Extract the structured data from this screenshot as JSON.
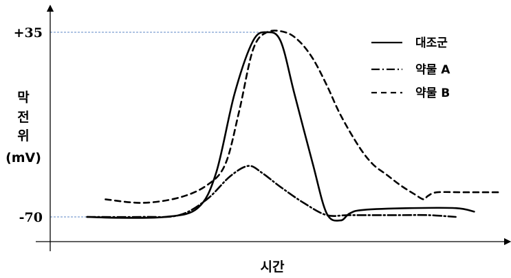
{
  "chart_data": {
    "type": "line",
    "xlabel": "시간",
    "ylabel_lines": [
      "막",
      "전",
      "위",
      "(mV)"
    ],
    "y_ticks": [
      {
        "value": 35,
        "label": "+35"
      },
      {
        "value": -70,
        "label": "-70"
      }
    ],
    "reference_lines": [
      35,
      -70
    ],
    "legend_position": "top-right",
    "x_range": [
      0,
      100
    ],
    "ylim": [
      -81,
      41
    ],
    "series": [
      {
        "name": "대조군",
        "style": "solid",
        "points": [
          [
            8,
            -70
          ],
          [
            15,
            -70.5
          ],
          [
            25,
            -70
          ],
          [
            32,
            -65
          ],
          [
            36,
            -45
          ],
          [
            40,
            0
          ],
          [
            44,
            30
          ],
          [
            47,
            35
          ],
          [
            50,
            30
          ],
          [
            53,
            0
          ],
          [
            57,
            -40
          ],
          [
            60,
            -68
          ],
          [
            63,
            -72
          ],
          [
            65,
            -68
          ],
          [
            68,
            -66
          ],
          [
            78,
            -65
          ],
          [
            88,
            -65
          ],
          [
            92,
            -67
          ]
        ]
      },
      {
        "name": "약물 A",
        "style": "dashdot",
        "points": [
          [
            8,
            -70
          ],
          [
            20,
            -70
          ],
          [
            28,
            -69
          ],
          [
            34,
            -60
          ],
          [
            39,
            -47
          ],
          [
            43,
            -41
          ],
          [
            46,
            -45
          ],
          [
            50,
            -53
          ],
          [
            55,
            -62
          ],
          [
            60,
            -69
          ],
          [
            65,
            -69
          ],
          [
            75,
            -69
          ],
          [
            82,
            -69
          ],
          [
            88,
            -70
          ]
        ]
      },
      {
        "name": "약물 B",
        "style": "dashed",
        "points": [
          [
            12,
            -60
          ],
          [
            20,
            -62
          ],
          [
            28,
            -59
          ],
          [
            34,
            -52
          ],
          [
            38,
            -40
          ],
          [
            41,
            -10
          ],
          [
            44,
            25
          ],
          [
            47,
            35
          ],
          [
            51,
            35
          ],
          [
            54,
            30
          ],
          [
            57,
            20
          ],
          [
            60,
            5
          ],
          [
            63,
            -12
          ],
          [
            67,
            -30
          ],
          [
            70,
            -40
          ],
          [
            73,
            -46
          ],
          [
            76,
            -52
          ],
          [
            79,
            -57
          ],
          [
            81,
            -60
          ],
          [
            82,
            -58
          ],
          [
            84,
            -56
          ],
          [
            90,
            -56
          ],
          [
            98,
            -56
          ]
        ]
      }
    ]
  }
}
